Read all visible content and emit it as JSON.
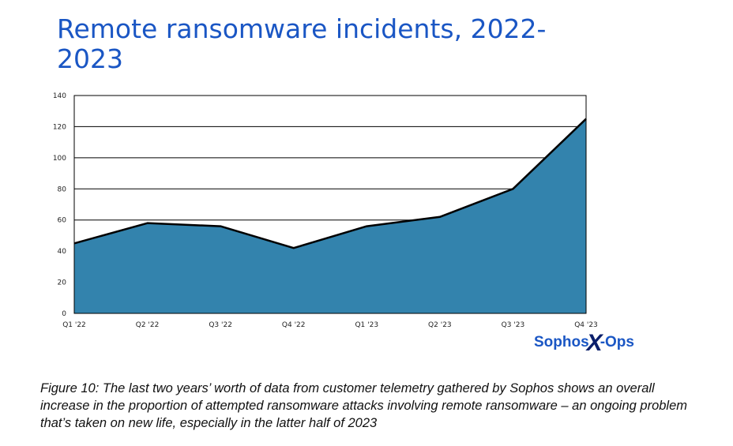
{
  "title": "Remote ransomware incidents, 2022-2023",
  "colors": {
    "title": "#1a56c4",
    "area_fill": "#3383ad",
    "line": "#000000",
    "grid": "#000000"
  },
  "logo": {
    "text_left": "Sophos",
    "text_mark": "X",
    "text_right": "-Ops"
  },
  "caption": "Figure 10: The last two years’ worth of data from customer telemetry gathered by Sophos shows an overall increase in the proportion of attempted ransomware attacks involving remote ransomware – an ongoing problem that’s taken on new life, especially in the latter half of 2023",
  "chart_data": {
    "type": "area",
    "categories": [
      "Q1 '22",
      "Q2 '22",
      "Q3 '22",
      "Q4 '22",
      "Q1 '23",
      "Q2 '23",
      "Q3 '23",
      "Q4 '23"
    ],
    "values": [
      45,
      58,
      56,
      42,
      56,
      62,
      80,
      125
    ],
    "ylim": [
      0,
      140
    ],
    "yticks": [
      0,
      20,
      40,
      60,
      80,
      100,
      120,
      140
    ],
    "grid": true,
    "xlabel": "",
    "ylabel": ""
  }
}
